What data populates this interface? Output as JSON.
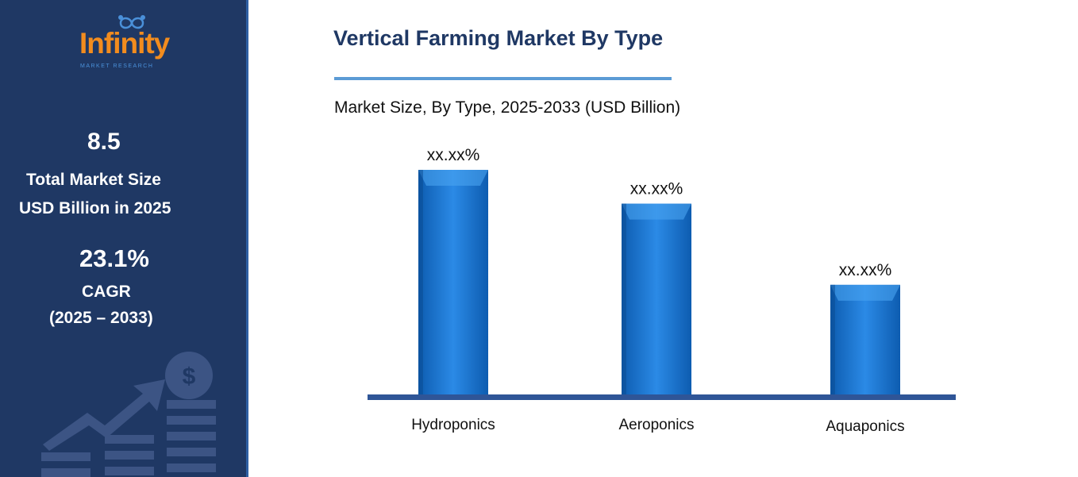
{
  "sidebar": {
    "logo_text": "Infinity",
    "logo_subtext": "MARKET RESEARCH",
    "market_size_value": "8.5",
    "market_size_label_1": "Total Market Size",
    "market_size_label_2": "USD Billion in 2025",
    "cagr_value": "23.1%",
    "cagr_label": "CAGR",
    "cagr_period": "(2025 – 2033)",
    "decor_icon": "growth-chart-dollar-icon"
  },
  "colors": {
    "sidebar_bg": "#1f3864",
    "title": "#1f3864",
    "bar": "#1a78d4",
    "baseline": "#2f5597",
    "logo_orange": "#f28c1e"
  },
  "chart_data": {
    "type": "bar",
    "title": "Vertical Farming Market By Type",
    "subtitle": "Market Size, By Type, 2025-2033 (USD Billion)",
    "categories": [
      "Hydroponics",
      "Aeroponics",
      "Aquaponics"
    ],
    "values": [
      100,
      85,
      49
    ],
    "data_labels": [
      "xx.xx%",
      "xx.xx%",
      "xx.xx%"
    ],
    "value_unit": "relative bar height (values not printed)",
    "ylim": [
      0,
      100
    ],
    "grid": false,
    "legend": "none"
  }
}
